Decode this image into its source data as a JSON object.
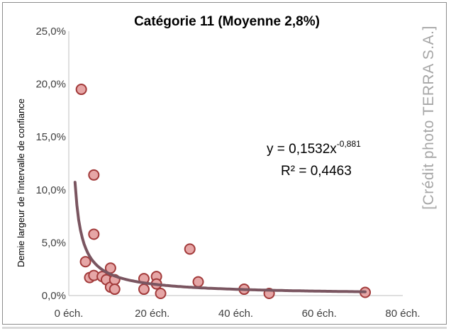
{
  "chart_data": {
    "type": "scatter",
    "title": "Catégorie 11 (Moyenne 2,8%)",
    "xlabel": "",
    "ylabel": "Demie largeur de l'intervalle de confiance",
    "xlim": [
      0,
      80
    ],
    "ylim": [
      0,
      0.25
    ],
    "x_ticks": [
      0,
      20,
      40,
      60,
      80
    ],
    "x_tick_labels": [
      "0 éch.",
      "20 éch.",
      "40 éch.",
      "60 éch.",
      "80 éch."
    ],
    "y_ticks": [
      0,
      0.05,
      0.1,
      0.15,
      0.2,
      0.25
    ],
    "y_tick_labels": [
      "0,0%",
      "5,0%",
      "10,0%",
      "15,0%",
      "20,0%",
      "25,0%"
    ],
    "grid": false,
    "series": [
      {
        "points": [
          {
            "x": 3,
            "y": 0.195
          },
          {
            "x": 4,
            "y": 0.032
          },
          {
            "x": 5,
            "y": 0.017
          },
          {
            "x": 6,
            "y": 0.114
          },
          {
            "x": 6,
            "y": 0.058
          },
          {
            "x": 6,
            "y": 0.019
          },
          {
            "x": 8,
            "y": 0.018
          },
          {
            "x": 9,
            "y": 0.015
          },
          {
            "x": 10,
            "y": 0.026
          },
          {
            "x": 10,
            "y": 0.008
          },
          {
            "x": 11,
            "y": 0.015
          },
          {
            "x": 11,
            "y": 0.006
          },
          {
            "x": 18,
            "y": 0.016
          },
          {
            "x": 18,
            "y": 0.006
          },
          {
            "x": 21,
            "y": 0.018
          },
          {
            "x": 21,
            "y": 0.011
          },
          {
            "x": 22,
            "y": 0.002
          },
          {
            "x": 29,
            "y": 0.044
          },
          {
            "x": 31,
            "y": 0.013
          },
          {
            "x": 42,
            "y": 0.006
          },
          {
            "x": 48,
            "y": 0.002
          },
          {
            "x": 71,
            "y": 0.003
          }
        ]
      }
    ],
    "trendline": {
      "type": "power",
      "coefficient": 0.1532,
      "exponent": -0.881,
      "x_range": [
        1.5,
        71
      ],
      "equation_prefix": "y = 0,1532x",
      "equation_exponent": "-0,881",
      "r2_label": "R² = 0,4463"
    },
    "colors": {
      "marker_fill": "#e6a6a6",
      "marker_stroke": "#a23a3a",
      "trendline": "#7a5560",
      "axis": "#bfbfbf"
    }
  },
  "watermark": "[Crédit photo TERRA S.A.]"
}
